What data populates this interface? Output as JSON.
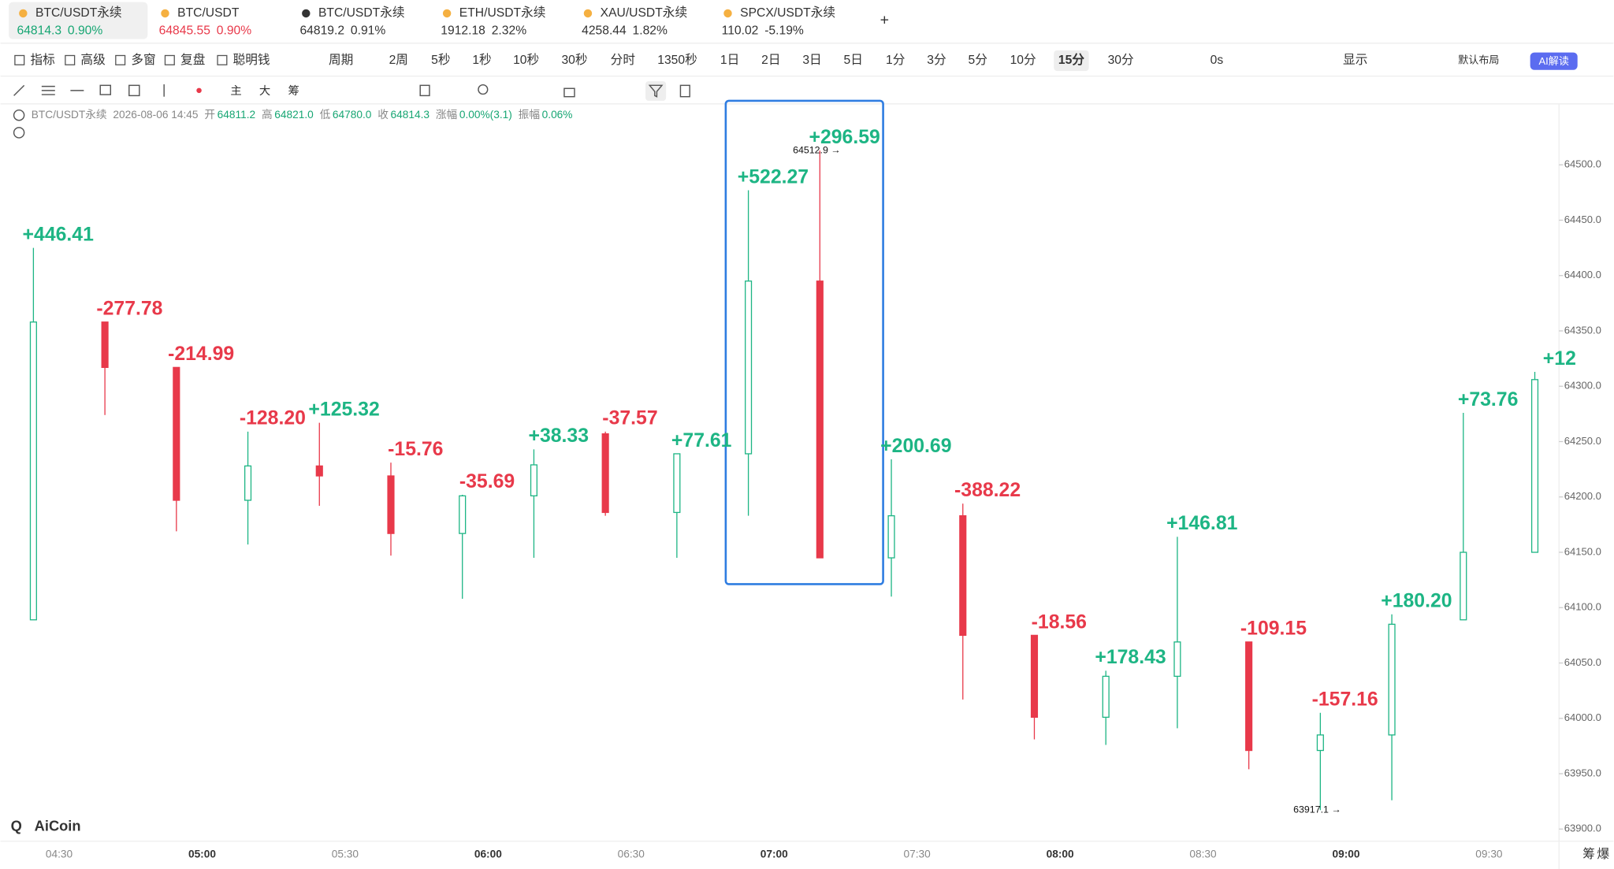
{
  "tabs": [
    {
      "symbol": "BTC/USDT永续",
      "price": "64814.3",
      "change": "0.90%",
      "color": "#17a673",
      "selected": true
    },
    {
      "symbol": "BTC/USDT",
      "price": "64845.55",
      "change": "0.90%",
      "color": "#e8394a",
      "selected": false
    },
    {
      "symbol": "BTC/USDT永续",
      "price": "64819.2",
      "change": "0.91%",
      "color": "#333333",
      "selected": false
    },
    {
      "symbol": "ETH/USDT永续",
      "price": "1912.18",
      "change": "2.32%",
      "color": "#333333",
      "selected": false
    },
    {
      "symbol": "XAU/USDT永续",
      "price": "4258.44",
      "change": "1.82%",
      "color": "#333333",
      "selected": false
    },
    {
      "symbol": "SPCX/USDT永续",
      "price": "110.02",
      "change": "-5.19%",
      "color": "#333333",
      "selected": false
    }
  ],
  "toolbar": {
    "tools": [
      "指标",
      "高级",
      "多窗",
      "复盘",
      "聪明钱"
    ],
    "period": "周期",
    "periods": [
      "2周",
      "5秒",
      "1秒",
      "10秒",
      "30秒",
      "分时",
      "1350秒",
      "1日",
      "2日",
      "3日",
      "5日",
      "1分",
      "3分",
      "5分",
      "10分",
      "15分",
      "30分"
    ],
    "selected_period": "15分",
    "countdown": "0s",
    "display": "显示",
    "layout": "默认布局",
    "ai": "AI解读"
  },
  "info_bar": {
    "symbol": "BTC/USDT永续",
    "time": "2026-08-06 14:45",
    "fields": [
      {
        "label": "开",
        "value": "64811.2"
      },
      {
        "label": "高",
        "value": "64821.0"
      },
      {
        "label": "低",
        "value": "64780.0"
      },
      {
        "label": "收",
        "value": "64814.3"
      },
      {
        "label": "涨幅",
        "value": "0.00%(3.1)"
      },
      {
        "label": "振幅",
        "value": "0.06%"
      }
    ]
  },
  "logo": "AiCoin",
  "side_buttons": [
    "筹",
    "爆"
  ],
  "chart_data": {
    "type": "candlestick",
    "categories": [
      "04:30",
      null,
      "05:00",
      null,
      "05:30",
      null,
      "06:00",
      null,
      "06:30",
      null,
      "07:00",
      null,
      "07:30",
      null,
      "08:00",
      null,
      "08:30",
      null,
      "09:00",
      null,
      "09:30",
      null
    ],
    "open": [
      64089,
      64358,
      64317,
      64197,
      64228,
      64219,
      64167,
      64201,
      64257,
      64186,
      64239,
      64395,
      64145,
      64183,
      64075,
      64001,
      64038,
      64069,
      63971,
      63985,
      64089,
      64150
    ],
    "high": [
      64425,
      64358,
      64317,
      64259,
      64267,
      64231,
      64202,
      64243,
      64259,
      64239,
      64477,
      64512.9,
      64234,
      64194,
      64075,
      64043,
      64164,
      64069,
      64005,
      64094,
      64276,
      64313
    ],
    "low": [
      64089,
      64274,
      64169,
      64157,
      64192,
      64147,
      64108,
      64145,
      64183,
      64145,
      64183,
      64145,
      64110,
      64017,
      63981,
      63976,
      63991,
      63954,
      63917.1,
      63926,
      64089,
      64150
    ],
    "close": [
      64358,
      64317,
      64197,
      64228,
      64219,
      64167,
      64201,
      64229,
      64186,
      64239,
      64395,
      64145,
      64183,
      64075,
      64001,
      64038,
      64069,
      63971,
      63985,
      64085,
      64150,
      64306
    ],
    "delta": [
      446.41,
      -277.78,
      -214.99,
      -128.2,
      125.32,
      -15.76,
      -35.69,
      38.33,
      -37.57,
      77.61,
      522.27,
      296.59,
      200.69,
      -388.22,
      -18.56,
      178.43,
      146.81,
      -109.15,
      -157.16,
      180.2,
      73.76,
      12
    ],
    "delta_labels": [
      "+446.41",
      "-277.78",
      "-214.99",
      "-128.20",
      "+125.32",
      "-15.76",
      "-35.69",
      "+38.33",
      "-37.57",
      "+77.61",
      "+522.27",
      "+296.59",
      "+200.69",
      "-388.22",
      "-18.56",
      "+178.43",
      "+146.81",
      "-109.15",
      "-157.16",
      "+180.20",
      "+73.76",
      "+12"
    ],
    "up_color": "#1db584",
    "down_color": "#e8394a",
    "annotations": [
      {
        "label": "64512.9 →",
        "value": 64512.9,
        "index": 11
      },
      {
        "label": "63917.1 →",
        "value": 63917.1,
        "index": 18
      }
    ],
    "ylim": [
      63889,
      64556
    ],
    "yticks": [
      {
        "value": 63900,
        "label": "63900.0"
      },
      {
        "value": 63950,
        "label": "63950.0"
      },
      {
        "value": 64000,
        "label": "64000.0"
      },
      {
        "value": 64050,
        "label": "64050.0"
      },
      {
        "value": 64100,
        "label": "64100.0"
      },
      {
        "value": 64150,
        "label": "64150.0"
      },
      {
        "value": 64200,
        "label": "64200.0"
      },
      {
        "value": 64250,
        "label": "64250.0"
      },
      {
        "value": 64300,
        "label": "64300.0"
      },
      {
        "value": 64350,
        "label": "64350.0"
      },
      {
        "value": 64400,
        "label": "64400.0"
      },
      {
        "value": 64450,
        "label": "64450.0"
      },
      {
        "value": 64500,
        "label": "64500.0"
      }
    ],
    "grid": false
  }
}
